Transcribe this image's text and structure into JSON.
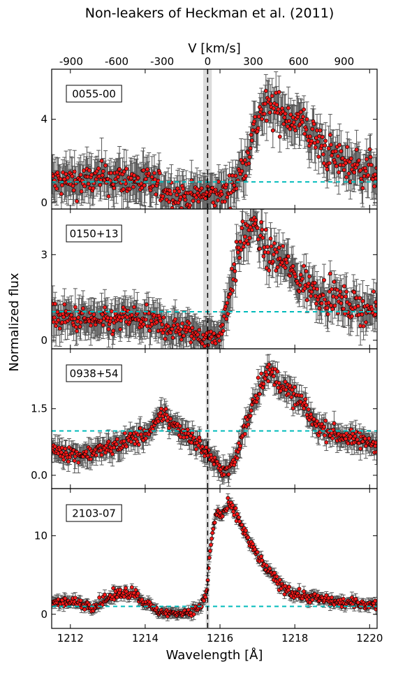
{
  "chart_data": {
    "type": "scatter",
    "title": "Non-leakers of Heckman et al. (2011)",
    "xlabel": "Wavelength [Å]",
    "ylabel": "Normalized flux",
    "top_axis_label": "V [km/s]",
    "xlim": [
      1211.5,
      1220.2
    ],
    "x_ticks": [
      1212,
      1214,
      1216,
      1218,
      1220
    ],
    "x_tick_labels": [
      "1212",
      "1214",
      "1216",
      "1218",
      "1220"
    ],
    "rest_wavelength": 1215.67,
    "velocity_ticks": [
      -900,
      -600,
      -300,
      0,
      300,
      600,
      900
    ],
    "velocity_tick_labels": [
      "-900",
      "-600",
      "-300",
      "0",
      "300",
      "600",
      "900"
    ],
    "continuum_level": 1.0,
    "colors": {
      "points": "#ff1a1a",
      "point_edge": "#000000",
      "errorbars": "#555555",
      "continuum": "#00bbbb",
      "shade": "#cccccc",
      "rest_line": "#000000"
    },
    "panels": [
      {
        "id": "0055-00",
        "ylim": [
          -0.3,
          6.4
        ],
        "y_ticks": [
          0,
          4
        ],
        "y_tick_labels": [
          "0",
          "4"
        ],
        "shade": [
          1215.55,
          1215.78
        ],
        "profile": [
          [
            1211.5,
            1.0
          ],
          [
            1212.5,
            1.05
          ],
          [
            1213.0,
            1.2
          ],
          [
            1213.8,
            1.05
          ],
          [
            1214.2,
            0.9
          ],
          [
            1214.6,
            0.5
          ],
          [
            1215.0,
            0.3
          ],
          [
            1215.5,
            0.35
          ],
          [
            1215.9,
            0.4
          ],
          [
            1216.2,
            0.5
          ],
          [
            1216.5,
            1.2
          ],
          [
            1216.8,
            2.8
          ],
          [
            1217.1,
            4.4
          ],
          [
            1217.4,
            4.5
          ],
          [
            1217.8,
            4.2
          ],
          [
            1218.2,
            3.8
          ],
          [
            1218.6,
            2.9
          ],
          [
            1219.0,
            2.2
          ],
          [
            1219.5,
            1.8
          ],
          [
            1220.2,
            1.5
          ]
        ],
        "noise": 0.45,
        "errbar": 0.85
      },
      {
        "id": "0150+13",
        "ylim": [
          -0.3,
          4.6
        ],
        "y_ticks": [
          0,
          3
        ],
        "y_tick_labels": [
          "0",
          "3"
        ],
        "shade": [
          1215.55,
          1215.78
        ],
        "profile": [
          [
            1211.5,
            0.8
          ],
          [
            1212.5,
            0.7
          ],
          [
            1213.0,
            0.6
          ],
          [
            1213.6,
            0.8
          ],
          [
            1214.2,
            0.6
          ],
          [
            1214.8,
            0.4
          ],
          [
            1215.5,
            0.15
          ],
          [
            1215.9,
            0.05
          ],
          [
            1216.1,
            0.6
          ],
          [
            1216.3,
            2.0
          ],
          [
            1216.6,
            3.6
          ],
          [
            1216.9,
            4.0
          ],
          [
            1217.3,
            3.0
          ],
          [
            1217.7,
            2.8
          ],
          [
            1218.0,
            2.2
          ],
          [
            1218.5,
            1.8
          ],
          [
            1219.0,
            1.5
          ],
          [
            1219.5,
            1.2
          ],
          [
            1220.2,
            1.0
          ]
        ],
        "noise": 0.3,
        "errbar": 0.55
      },
      {
        "id": "0938+54",
        "ylim": [
          -0.3,
          2.85
        ],
        "y_ticks": [
          0.0,
          1.5
        ],
        "y_tick_labels": [
          "0.0",
          "1.5"
        ],
        "shade": [
          1215.62,
          1215.72
        ],
        "profile": [
          [
            1211.5,
            0.6
          ],
          [
            1212.2,
            0.45
          ],
          [
            1213.0,
            0.6
          ],
          [
            1213.6,
            0.8
          ],
          [
            1214.2,
            1.0
          ],
          [
            1214.5,
            1.45
          ],
          [
            1214.7,
            1.15
          ],
          [
            1215.2,
            0.9
          ],
          [
            1215.6,
            0.55
          ],
          [
            1216.0,
            0.15
          ],
          [
            1216.2,
            0.1
          ],
          [
            1216.4,
            0.3
          ],
          [
            1216.6,
            0.9
          ],
          [
            1216.9,
            1.7
          ],
          [
            1217.2,
            2.3
          ],
          [
            1217.5,
            2.2
          ],
          [
            1217.8,
            1.9
          ],
          [
            1218.2,
            1.6
          ],
          [
            1218.6,
            1.1
          ],
          [
            1219.0,
            0.95
          ],
          [
            1219.6,
            0.8
          ],
          [
            1220.2,
            0.7
          ]
        ],
        "noise": 0.12,
        "errbar": 0.22
      },
      {
        "id": "2103-07",
        "ylim": [
          -1.8,
          16.0
        ],
        "y_ticks": [
          0,
          10
        ],
        "y_tick_labels": [
          "0",
          "10"
        ],
        "shade": [
          1215.62,
          1215.72
        ],
        "profile": [
          [
            1211.5,
            1.6
          ],
          [
            1212.2,
            1.5
          ],
          [
            1212.6,
            1.0
          ],
          [
            1213.0,
            2.0
          ],
          [
            1213.4,
            2.8
          ],
          [
            1213.7,
            2.8
          ],
          [
            1214.0,
            1.5
          ],
          [
            1214.3,
            0.4
          ],
          [
            1214.7,
            0.1
          ],
          [
            1215.2,
            0.3
          ],
          [
            1215.5,
            1.0
          ],
          [
            1215.65,
            3.0
          ],
          [
            1215.75,
            9.0
          ],
          [
            1215.9,
            13.0
          ],
          [
            1216.05,
            12.5
          ],
          [
            1216.25,
            14.0
          ],
          [
            1216.5,
            12.0
          ],
          [
            1216.8,
            9.0
          ],
          [
            1217.2,
            6.0
          ],
          [
            1217.6,
            3.8
          ],
          [
            1218.0,
            2.6
          ],
          [
            1218.6,
            2.0
          ],
          [
            1219.2,
            1.5
          ],
          [
            1220.2,
            1.2
          ]
        ],
        "noise": 0.35,
        "errbar": 0.55
      }
    ]
  }
}
